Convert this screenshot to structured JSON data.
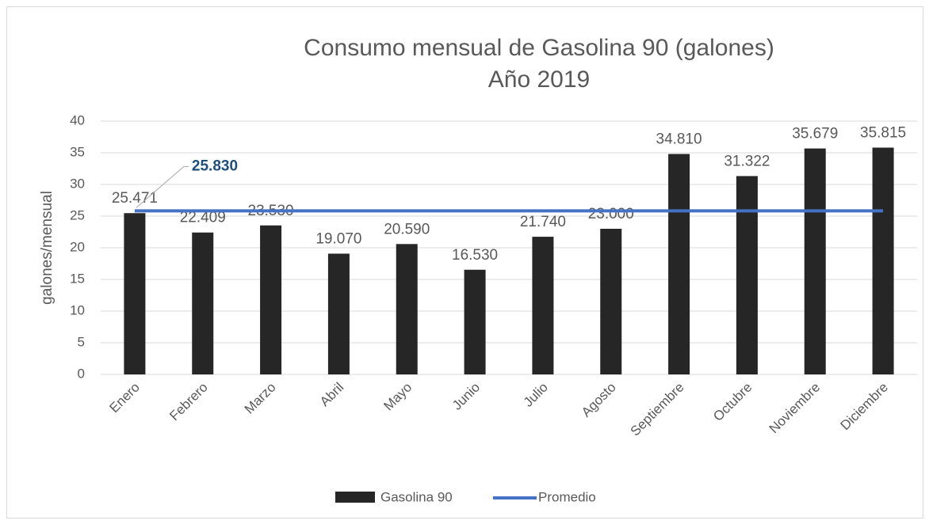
{
  "chart_data": {
    "type": "bar_line",
    "title": "Consumo mensual de Gasolina 90 (galones)",
    "subtitle": "Año 2019",
    "y_label": "galones/mensual",
    "categories": [
      "Enero",
      "Febrero",
      "Marzo",
      "Abril",
      "Mayo",
      "Junio",
      "Julio",
      "Agosto",
      "Septiembre",
      "Octubre",
      "Noviembre",
      "Diciembre"
    ],
    "series": [
      {
        "name": "Gasolina 90",
        "type": "bar",
        "color": "#262626",
        "values": [
          25.471,
          22.409,
          23.53,
          19.07,
          20.59,
          16.53,
          21.74,
          23.0,
          34.81,
          31.322,
          35.679,
          35.815
        ],
        "value_labels": [
          "25.471",
          "22.409",
          "23.530",
          "19.070",
          "20.590",
          "16.530",
          "21.740",
          "23.000",
          "34.810",
          "31.322",
          "35.679",
          "35.815"
        ]
      },
      {
        "name": "Promedio",
        "type": "line",
        "color": "#4472c4",
        "values": [
          25.83,
          25.83,
          25.83,
          25.83,
          25.83,
          25.83,
          25.83,
          25.83,
          25.83,
          25.83,
          25.83,
          25.83
        ],
        "value_labels": [
          "25.830",
          null,
          null,
          null,
          null,
          null,
          null,
          null,
          null,
          null,
          null,
          null
        ]
      }
    ],
    "ylim": [
      0,
      40
    ],
    "yticks": [
      0,
      5,
      10,
      15,
      20,
      25,
      30,
      35,
      40
    ],
    "grid": true,
    "legend": "bottom"
  }
}
